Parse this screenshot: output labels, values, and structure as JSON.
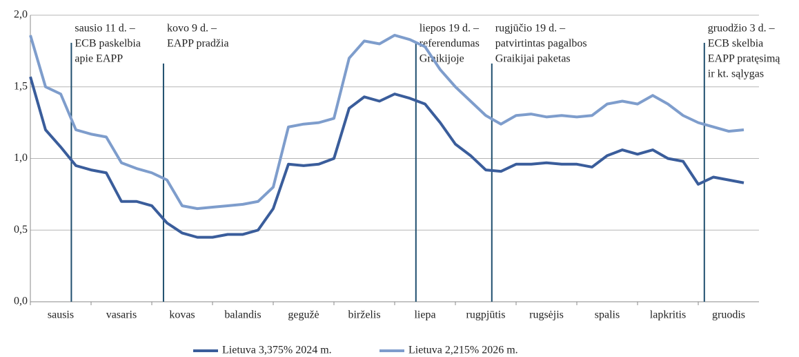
{
  "chart_data": {
    "type": "line",
    "categories": [
      "sausis",
      null,
      null,
      null,
      "vasaris",
      null,
      null,
      null,
      "kovas",
      null,
      null,
      null,
      "balandis",
      null,
      null,
      null,
      "gegužė",
      null,
      null,
      null,
      "birželis",
      null,
      null,
      null,
      "liepa",
      null,
      null,
      null,
      "rugpjūtis",
      null,
      null,
      null,
      "rugsėjis",
      null,
      null,
      null,
      "spalis",
      null,
      null,
      null,
      "lapkritis",
      null,
      null,
      null,
      "gruodis",
      null,
      null,
      null
    ],
    "series": [
      {
        "name": "Lietuva 3,375% 2024 m.",
        "color": "#3a5d9b",
        "values": [
          1.57,
          1.2,
          1.08,
          0.95,
          0.92,
          0.9,
          0.7,
          0.7,
          0.67,
          0.55,
          0.48,
          0.45,
          0.45,
          0.47,
          0.47,
          0.5,
          0.65,
          0.96,
          0.95,
          0.96,
          1.0,
          1.35,
          1.43,
          1.4,
          1.45,
          1.42,
          1.38,
          1.25,
          1.1,
          1.02,
          0.92,
          0.91,
          0.96,
          0.96,
          0.97,
          0.96,
          0.96,
          0.94,
          1.02,
          1.06,
          1.03,
          1.06,
          1.0,
          0.98,
          0.82,
          0.87,
          0.85,
          0.83
        ]
      },
      {
        "name": "Lietuva 2,215% 2026 m.",
        "color": "#7e9dcc",
        "values": [
          1.86,
          1.5,
          1.45,
          1.2,
          1.17,
          1.15,
          0.97,
          0.93,
          0.9,
          0.85,
          0.67,
          0.65,
          0.66,
          0.67,
          0.68,
          0.7,
          0.8,
          1.22,
          1.24,
          1.25,
          1.28,
          1.7,
          1.82,
          1.8,
          1.86,
          1.83,
          1.78,
          1.62,
          1.5,
          1.4,
          1.3,
          1.24,
          1.3,
          1.31,
          1.29,
          1.3,
          1.29,
          1.3,
          1.38,
          1.4,
          1.38,
          1.44,
          1.38,
          1.3,
          1.25,
          1.22,
          1.19,
          1.2
        ]
      }
    ],
    "ylim": [
      0,
      2
    ],
    "yticks": [
      {
        "value": 0,
        "label": "0,0"
      },
      {
        "value": 0.5,
        "label": "0,5"
      },
      {
        "value": 1,
        "label": "1,0"
      },
      {
        "value": 1.5,
        "label": "1,5"
      },
      {
        "value": 2,
        "label": "2,0"
      }
    ],
    "grid": true,
    "legend": "bottom",
    "annotations": [
      {
        "x": 2.7,
        "lines": [
          "sausio 11 d. –",
          "ECB paskelbia",
          "apie EAPP"
        ]
      },
      {
        "x": 8.77,
        "lines": [
          "kovo 9 d. –",
          "EAPP pradžia"
        ]
      },
      {
        "x": 25.4,
        "lines": [
          "liepos 19 d. –",
          "referendumas",
          "Graikijoje"
        ]
      },
      {
        "x": 30.4,
        "lines": [
          "rugjūčio 19 d. –",
          "patvirtintas pagalbos",
          "Graikijai paketas"
        ]
      },
      {
        "x": 44.4,
        "lines": [
          "gruodžio 3 d. –",
          "ECB skelbia",
          "EAPP pratęsimą",
          "ir kt. sąlygas"
        ]
      }
    ]
  }
}
